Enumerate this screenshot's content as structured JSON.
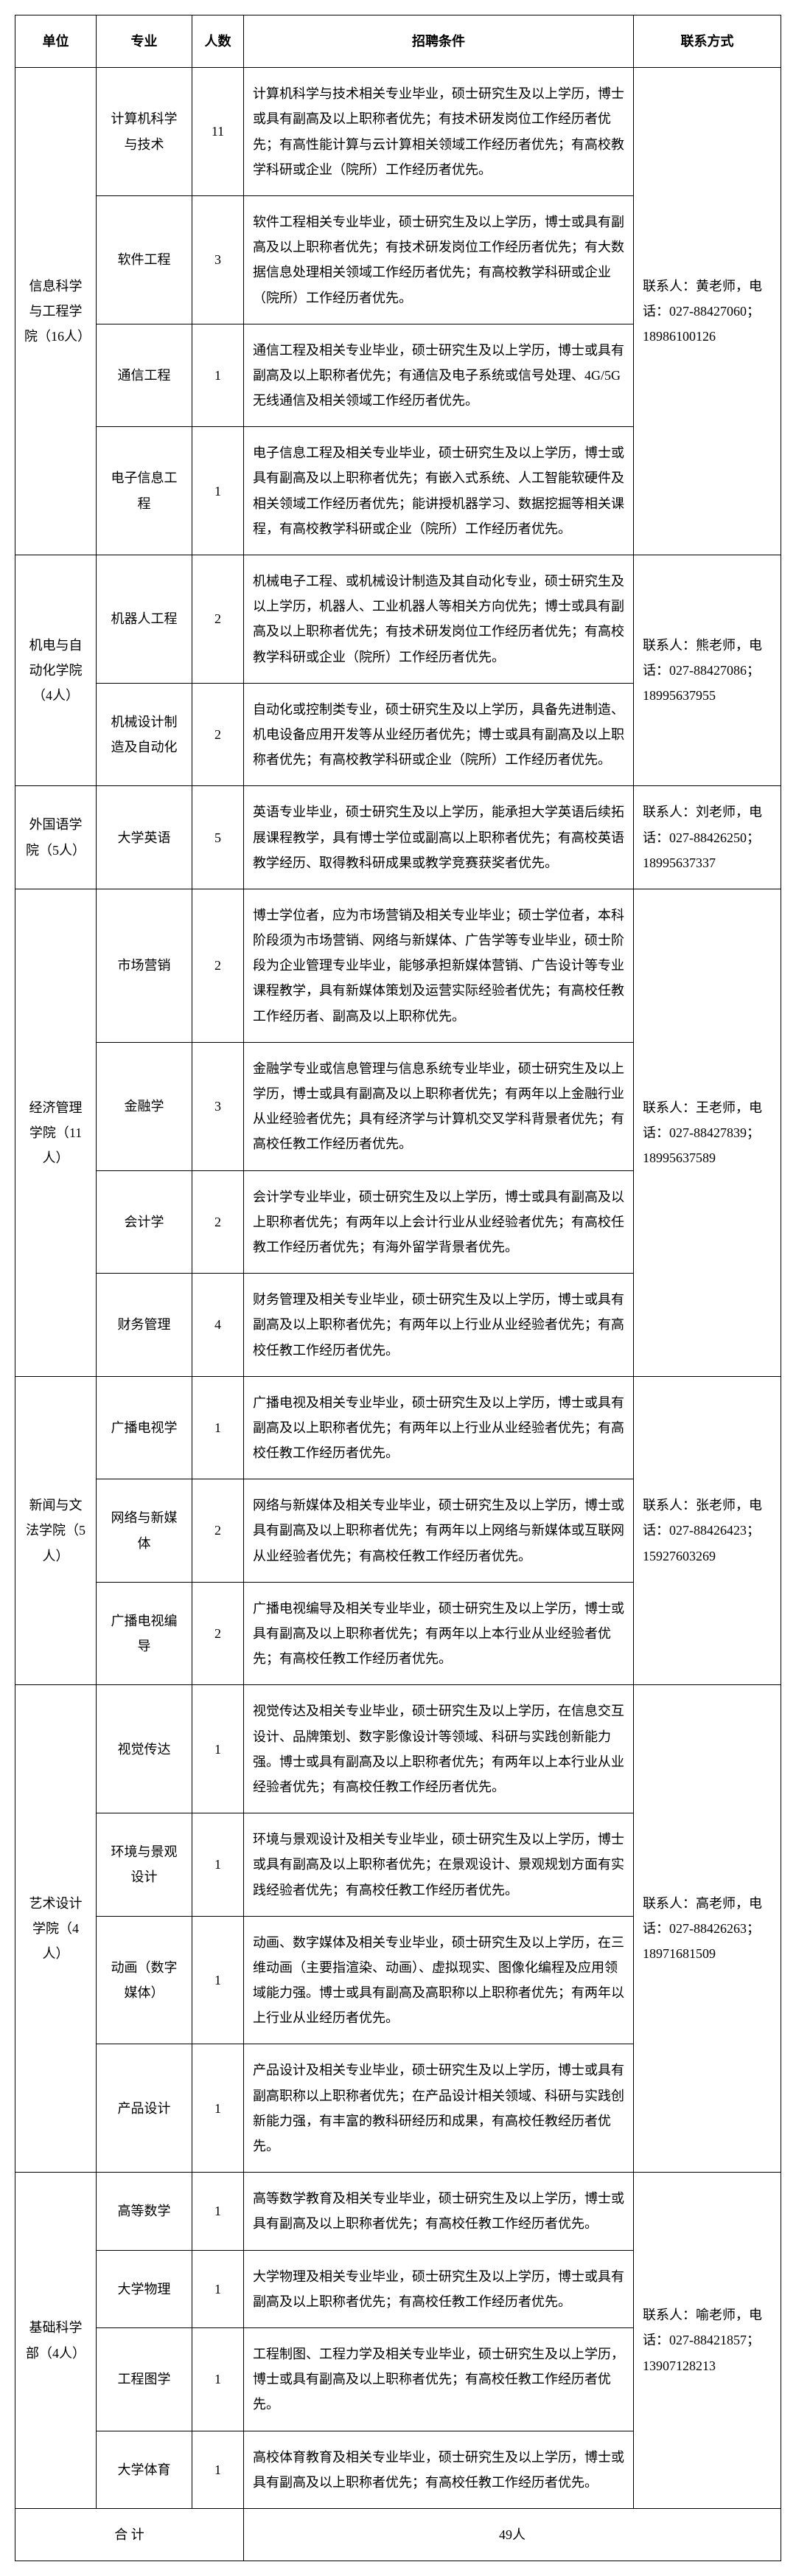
{
  "headers": {
    "unit": "单位",
    "major": "专业",
    "count": "人数",
    "condition": "招聘条件",
    "contact": "联系方式"
  },
  "departments": [
    {
      "unit": "信息科学与工程学院（16人）",
      "contact": "联系人：黄老师，电话：027-88427060；18986100126",
      "positions": [
        {
          "major": "计算机科学与技术",
          "count": "11",
          "condition": "计算机科学与技术相关专业毕业，硕士研究生及以上学历，博士或具有副高及以上职称者优先；有技术研发岗位工作经历者优先；有高性能计算与云计算相关领域工作经历者优先；有高校教学科研或企业（院所）工作经历者优先。"
        },
        {
          "major": "软件工程",
          "count": "3",
          "condition": "软件工程相关专业毕业，硕士研究生及以上学历，博士或具有副高及以上职称者优先；有技术研发岗位工作经历者优先；有大数据信息处理相关领域工作经历者优先；有高校教学科研或企业（院所）工作经历者优先。"
        },
        {
          "major": "通信工程",
          "count": "1",
          "condition": "通信工程及相关专业毕业，硕士研究生及以上学历，博士或具有副高及以上职称者优先；有通信及电子系统或信号处理、4G/5G无线通信及相关领域工作经历者优先。"
        },
        {
          "major": "电子信息工程",
          "count": "1",
          "condition": "电子信息工程及相关专业毕业，硕士研究生及以上学历，博士或具有副高及以上职称者优先；有嵌入式系统、人工智能软硬件及相关领域工作经历者优先；能讲授机器学习、数据挖掘等相关课程，有高校教学科研或企业（院所）工作经历者优先。"
        }
      ]
    },
    {
      "unit": "机电与自动化学院（4人）",
      "contact": "联系人：熊老师，电话：027-88427086；18995637955",
      "positions": [
        {
          "major": "机器人工程",
          "count": "2",
          "condition": "机械电子工程、或机械设计制造及其自动化专业，硕士研究生及以上学历，机器人、工业机器人等相关方向优先；博士或具有副高及以上职称者优先；有技术研发岗位工作经历者优先；有高校教学科研或企业（院所）工作经历者优先。"
        },
        {
          "major": "机械设计制造及自动化",
          "count": "2",
          "condition": "自动化或控制类专业，硕士研究生及以上学历，具备先进制造、机电设备应用开发等从业经历者优先；博士或具有副高及以上职称者优先；有高校教学科研或企业（院所）工作经历者优先。"
        }
      ]
    },
    {
      "unit": "外国语学院（5人）",
      "contact": "联系人：刘老师，电话：027-88426250；18995637337",
      "positions": [
        {
          "major": "大学英语",
          "count": "5",
          "condition": "英语专业毕业，硕士研究生及以上学历，能承担大学英语后续拓展课程教学，具有博士学位或副高以上职称者优先；有高校英语教学经历、取得教科研成果或教学竞赛获奖者优先。"
        }
      ]
    },
    {
      "unit": "经济管理学院（11人）",
      "contact": "联系人：王老师，电话：027-88427839；18995637589",
      "positions": [
        {
          "major": "市场营销",
          "count": "2",
          "condition": "博士学位者，应为市场营销及相关专业毕业；硕士学位者，本科阶段须为市场营销、网络与新媒体、广告学等专业毕业，硕士阶段为企业管理专业毕业，能够承担新媒体营销、广告设计等专业课程教学，具有新媒体策划及运营实际经验者优先；有高校任教工作经历者、副高及以上职称优先。"
        },
        {
          "major": "金融学",
          "count": "3",
          "condition": "金融学专业或信息管理与信息系统专业毕业，硕士研究生及以上学历，博士或具有副高及以上职称者优先；有两年以上金融行业从业经验者优先；具有经济学与计算机交叉学科背景者优先；有高校任教工作经历者优先。"
        },
        {
          "major": "会计学",
          "count": "2",
          "condition": "会计学专业毕业，硕士研究生及以上学历，博士或具有副高及以上职称者优先；有两年以上会计行业从业经验者优先；有高校任教工作经历者优先；有海外留学背景者优先。"
        },
        {
          "major": "财务管理",
          "count": "4",
          "condition": "财务管理及相关专业毕业，硕士研究生及以上学历，博士或具有副高及以上职称者优先；有两年以上行业从业经验者优先；有高校任教工作经历者优先。"
        }
      ]
    },
    {
      "unit": "新闻与文法学院（5人）",
      "contact": "联系人：张老师，电话：027-88426423；15927603269",
      "positions": [
        {
          "major": "广播电视学",
          "count": "1",
          "condition": "广播电视及相关专业毕业，硕士研究生及以上学历，博士或具有副高及以上职称者优先；有两年以上行业从业经验者优先；有高校任教工作经历者优先。"
        },
        {
          "major": "网络与新媒体",
          "count": "2",
          "condition": "网络与新媒体及相关专业毕业，硕士研究生及以上学历，博士或具有副高及以上职称者优先；有两年以上网络与新媒体或互联网从业经验者优先；有高校任教工作经历者优先。"
        },
        {
          "major": "广播电视编导",
          "count": "2",
          "condition": "广播电视编导及相关专业毕业，硕士研究生及以上学历，博士或具有副高及以上职称者优先；有两年以上本行业从业经验者优先；有高校任教工作经历者优先。"
        }
      ]
    },
    {
      "unit": "艺术设计学院（4人）",
      "contact": "联系人：高老师，电话：027-88426263；18971681509",
      "positions": [
        {
          "major": "视觉传达",
          "count": "1",
          "condition": "视觉传达及相关专业毕业，硕士研究生及以上学历，在信息交互设计、品牌策划、数字影像设计等领域、科研与实践创新能力强。博士或具有副高及以上职称者优先；有两年以上本行业从业经验者优先；有高校任教工作经历者优先。"
        },
        {
          "major": "环境与景观设计",
          "count": "1",
          "condition": "环境与景观设计及相关专业毕业，硕士研究生及以上学历，博士或具有副高及以上职称者优先；在景观设计、景观规划方面有实践经验者优先；有高校任教工作经历者优先。"
        },
        {
          "major": "动画（数字媒体）",
          "count": "1",
          "condition": "动画、数字媒体及相关专业毕业，硕士研究生及以上学历，在三维动画（主要指渲染、动画）、虚拟现实、图像化编程及应用领域能力强。博士或具有副高及高职称以上职称者优先；有两年以上行业从业经历者优先。"
        },
        {
          "major": "产品设计",
          "count": "1",
          "condition": "产品设计及相关专业毕业，硕士研究生及以上学历，博士或具有副高职称以上职称者优先；在产品设计相关领域、科研与实践创新能力强，有丰富的教科研经历和成果，有高校任教经历者优先。"
        }
      ]
    },
    {
      "unit": "基础科学部（4人）",
      "contact": "联系人：喻老师，电话：027-88421857；13907128213",
      "positions": [
        {
          "major": "高等数学",
          "count": "1",
          "condition": "高等数学教育及相关专业毕业，硕士研究生及以上学历，博士或具有副高及以上职称者优先；有高校任教工作经历者优先。"
        },
        {
          "major": "大学物理",
          "count": "1",
          "condition": "大学物理及相关专业毕业，硕士研究生及以上学历，博士或具有副高及以上职称者优先；有高校任教工作经历者优先。"
        },
        {
          "major": "工程图学",
          "count": "1",
          "condition": "工程制图、工程力学及相关专业毕业，硕士研究生及以上学历，博士或具有副高及以上职称者优先；有高校任教工作经历者优先。"
        },
        {
          "major": "大学体育",
          "count": "1",
          "condition": "高校体育教育及相关专业毕业，硕士研究生及以上学历，博士或具有副高及以上职称者优先；有高校任教工作经历者优先。"
        }
      ]
    }
  ],
  "total": {
    "label": "合        计",
    "value": "49人"
  }
}
